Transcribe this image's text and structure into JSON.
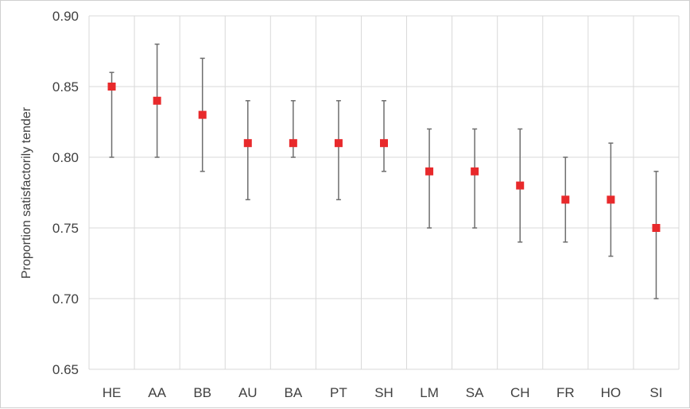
{
  "chart_data": {
    "type": "scatter",
    "title": "",
    "xlabel": "",
    "ylabel": "Proportion satisfactorily tender",
    "categories": [
      "HE",
      "AA",
      "BB",
      "AU",
      "BA",
      "PT",
      "SH",
      "LM",
      "SA",
      "CH",
      "FR",
      "HO",
      "SI"
    ],
    "series": [
      {
        "values": [
          0.85,
          0.84,
          0.83,
          0.81,
          0.81,
          0.81,
          0.81,
          0.79,
          0.79,
          0.78,
          0.77,
          0.77,
          0.75
        ],
        "error_low": [
          0.8,
          0.8,
          0.79,
          0.77,
          0.8,
          0.77,
          0.79,
          0.75,
          0.75,
          0.74,
          0.74,
          0.73,
          0.7
        ],
        "error_high": [
          0.86,
          0.88,
          0.87,
          0.84,
          0.84,
          0.84,
          0.84,
          0.82,
          0.82,
          0.82,
          0.8,
          0.81,
          0.79
        ],
        "marker": "square",
        "color": "#e8292b"
      }
    ],
    "ylim": [
      0.65,
      0.9
    ],
    "yticks": [
      "0.65",
      "0.70",
      "0.75",
      "0.80",
      "0.85",
      "0.90"
    ],
    "grid": true,
    "legend": "none",
    "colors": {
      "grid": "#d9d9d9",
      "errorbar": "#6e6e6e",
      "text": "#404040"
    }
  }
}
